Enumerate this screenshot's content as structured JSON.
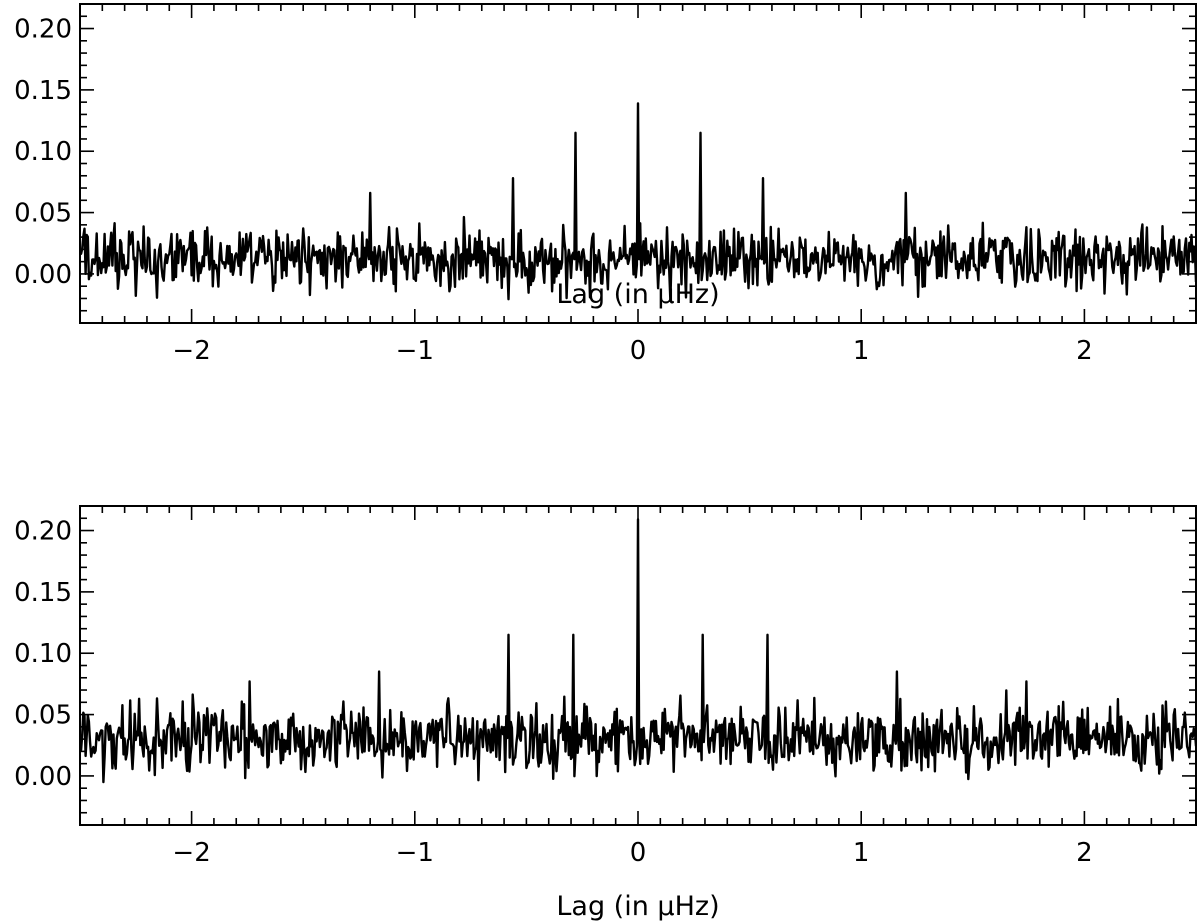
{
  "style": {
    "line_color": "#000000",
    "axis_color": "#000000",
    "background": "#ffffff"
  },
  "chart_data": [
    {
      "type": "line",
      "title": "",
      "xlabel": "Lag (in μHz)",
      "ylabel": "",
      "xlim": [
        -2.5,
        2.5
      ],
      "ylim": [
        -0.04,
        0.22
      ],
      "xticks": [
        -2,
        -1,
        0,
        1,
        2
      ],
      "xtick_labels": [
        "−2",
        "−1",
        "0",
        "1",
        "2"
      ],
      "yticks": [
        0.0,
        0.05,
        0.1,
        0.15,
        0.2
      ],
      "ytick_labels": [
        "0.00",
        "0.05",
        "0.10",
        "0.15",
        "0.20"
      ],
      "grid": false,
      "noise": {
        "center": 0.012,
        "amplitude": 0.018,
        "min": -0.03,
        "max": 0.055,
        "step": 0.005,
        "seed": 12345
      },
      "peaks": [
        {
          "x": -1.2,
          "y": 0.066
        },
        {
          "x": -0.56,
          "y": 0.078
        },
        {
          "x": -0.28,
          "y": 0.115
        },
        {
          "x": 0.0,
          "y": 0.139
        },
        {
          "x": 0.28,
          "y": 0.115
        },
        {
          "x": 0.56,
          "y": 0.078
        },
        {
          "x": 1.2,
          "y": 0.066
        }
      ]
    },
    {
      "type": "line",
      "title": "",
      "xlabel": "Lag (in μHz)",
      "ylabel": "",
      "xlim": [
        -2.5,
        2.5
      ],
      "ylim": [
        -0.04,
        0.22
      ],
      "xticks": [
        -2,
        -1,
        0,
        1,
        2
      ],
      "xtick_labels": [
        "−2",
        "−1",
        "0",
        "1",
        "2"
      ],
      "yticks": [
        0.0,
        0.05,
        0.1,
        0.15,
        0.2
      ],
      "ytick_labels": [
        "0.00",
        "0.05",
        "0.10",
        "0.15",
        "0.20"
      ],
      "grid": false,
      "noise": {
        "center": 0.031,
        "amplitude": 0.02,
        "min": -0.005,
        "max": 0.072,
        "step": 0.005,
        "seed": 67890
      },
      "peaks": [
        {
          "x": -1.74,
          "y": 0.077
        },
        {
          "x": -1.16,
          "y": 0.085
        },
        {
          "x": -0.58,
          "y": 0.115
        },
        {
          "x": -0.29,
          "y": 0.115
        },
        {
          "x": 0.0,
          "y": 0.209
        },
        {
          "x": 0.29,
          "y": 0.115
        },
        {
          "x": 0.58,
          "y": 0.115
        },
        {
          "x": 1.16,
          "y": 0.085
        },
        {
          "x": 1.74,
          "y": 0.077
        }
      ]
    }
  ]
}
